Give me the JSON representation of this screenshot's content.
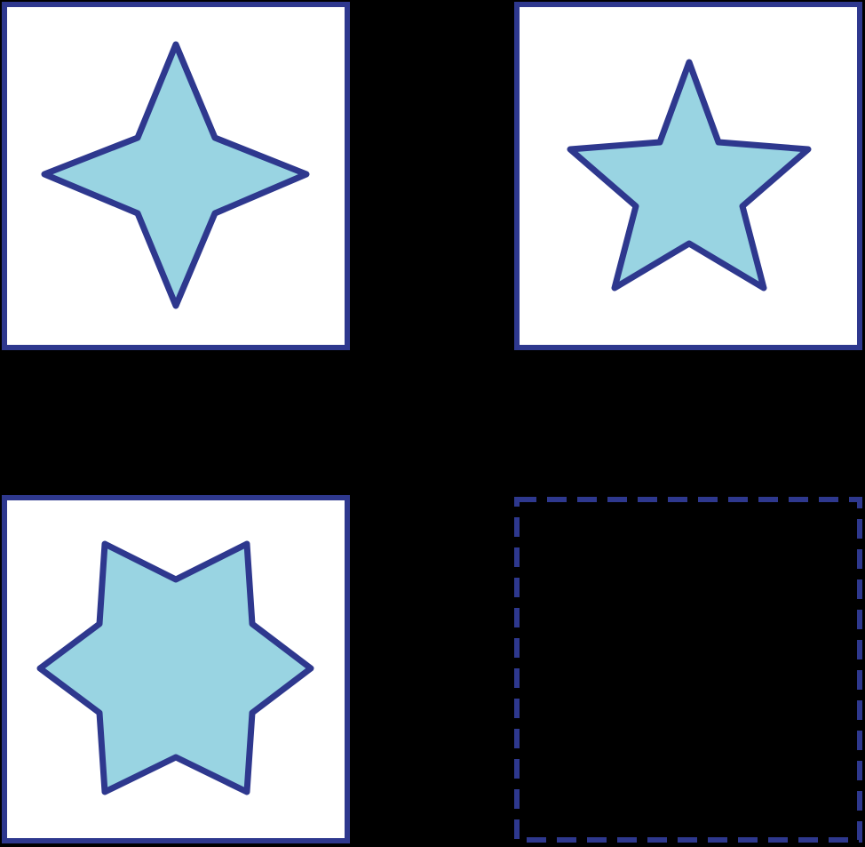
{
  "colors": {
    "background": "#000000",
    "card_fill": "#FFFFFF",
    "outline": "#2E388E",
    "shape_fill": "#99D4E2"
  },
  "cells": [
    {
      "shape": "four-point-star",
      "state": "filled"
    },
    {
      "shape": "five-point-star",
      "state": "filled"
    },
    {
      "shape": "six-point-star",
      "state": "filled"
    },
    {
      "shape": "empty",
      "state": "missing"
    }
  ]
}
